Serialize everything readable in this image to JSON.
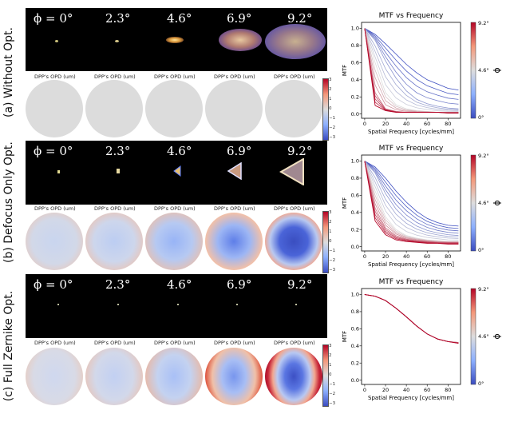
{
  "colors": {
    "cold": "#3b4cc0",
    "neutral": "#dddddd",
    "hot": "#b40426"
  },
  "phi_labels": [
    "ϕ = 0°",
    "2.3°",
    "4.6°",
    "6.9°",
    "9.2°"
  ],
  "opd_label": "DPP's OPD (um)",
  "opd_ticks": [
    "3",
    "2",
    "1",
    "0",
    "−1",
    "−2",
    "−3"
  ],
  "rows": [
    {
      "label": "(a) Without Opt."
    },
    {
      "label": "(b) Defocus Only Opt."
    },
    {
      "label": "(c) Full Zernike Opt."
    }
  ],
  "mtf_common": {
    "title": "MTF vs Frequency",
    "xlabel": "Spatial Frequency [cycles/mm]",
    "ylabel": "MTF",
    "xticks": [
      "0",
      "20",
      "40",
      "60",
      "80"
    ],
    "yticks": [
      "0.0",
      "0.2",
      "0.4",
      "0.6",
      "0.8",
      "1.0"
    ],
    "cbar_ticks": [
      "9.2°",
      "4.6°",
      "0°"
    ],
    "cbar_label": "ϕ"
  },
  "chart_data": [
    {
      "type": "line",
      "title": "MTF vs Frequency",
      "xlabel": "Spatial Frequency [cycles/mm]",
      "ylabel": "MTF",
      "xlim": [
        -3,
        92
      ],
      "ylim": [
        -0.05,
        1.07
      ],
      "x": [
        0,
        10,
        20,
        30,
        40,
        50,
        60,
        70,
        80,
        90
      ],
      "series": [
        {
          "name": "0°",
          "values": [
            1.0,
            0.93,
            0.82,
            0.7,
            0.58,
            0.48,
            0.4,
            0.35,
            0.3,
            0.28
          ]
        },
        {
          "name": "2.3°",
          "values": [
            1.0,
            0.86,
            0.62,
            0.42,
            0.27,
            0.17,
            0.12,
            0.09,
            0.07,
            0.06
          ]
        },
        {
          "name": "4.6°",
          "values": [
            1.0,
            0.6,
            0.25,
            0.11,
            0.06,
            0.04,
            0.03,
            0.02,
            0.02,
            0.02
          ]
        },
        {
          "name": "6.9°",
          "values": [
            1.0,
            0.25,
            0.06,
            0.03,
            0.02,
            0.02,
            0.02,
            0.02,
            0.02,
            0.02
          ]
        },
        {
          "name": "9.2°",
          "values": [
            1.0,
            0.1,
            0.04,
            0.02,
            0.02,
            0.02,
            0.02,
            0.02,
            0.01,
            0.01
          ]
        }
      ]
    },
    {
      "type": "line",
      "title": "MTF vs Frequency",
      "xlabel": "Spatial Frequency [cycles/mm]",
      "ylabel": "MTF",
      "xlim": [
        -3,
        92
      ],
      "ylim": [
        -0.05,
        1.07
      ],
      "x": [
        0,
        10,
        20,
        30,
        40,
        50,
        60,
        70,
        80,
        90
      ],
      "series": [
        {
          "name": "0°",
          "values": [
            1.0,
            0.93,
            0.8,
            0.65,
            0.52,
            0.41,
            0.33,
            0.28,
            0.25,
            0.24
          ]
        },
        {
          "name": "2.3°",
          "values": [
            1.0,
            0.86,
            0.62,
            0.44,
            0.32,
            0.24,
            0.19,
            0.16,
            0.14,
            0.13
          ]
        },
        {
          "name": "4.6°",
          "values": [
            1.0,
            0.65,
            0.35,
            0.2,
            0.13,
            0.1,
            0.08,
            0.07,
            0.06,
            0.06
          ]
        },
        {
          "name": "6.9°",
          "values": [
            1.0,
            0.45,
            0.22,
            0.13,
            0.09,
            0.07,
            0.06,
            0.05,
            0.05,
            0.05
          ]
        },
        {
          "name": "9.2°",
          "values": [
            1.0,
            0.3,
            0.14,
            0.08,
            0.06,
            0.05,
            0.04,
            0.04,
            0.03,
            0.03
          ]
        }
      ]
    },
    {
      "type": "line",
      "title": "MTF vs Frequency",
      "xlabel": "Spatial Frequency [cycles/mm]",
      "ylabel": "MTF",
      "xlim": [
        -3,
        92
      ],
      "ylim": [
        -0.05,
        1.07
      ],
      "x": [
        0,
        10,
        20,
        30,
        40,
        50,
        60,
        70,
        80,
        90
      ],
      "series": [
        {
          "name": "0°",
          "values": [
            1.0,
            0.98,
            0.93,
            0.84,
            0.74,
            0.63,
            0.54,
            0.48,
            0.45,
            0.44
          ]
        },
        {
          "name": "2.3°",
          "values": [
            1.0,
            0.98,
            0.93,
            0.84,
            0.74,
            0.63,
            0.54,
            0.48,
            0.45,
            0.44
          ]
        },
        {
          "name": "4.6°",
          "values": [
            1.0,
            0.98,
            0.93,
            0.84,
            0.74,
            0.63,
            0.54,
            0.48,
            0.45,
            0.44
          ]
        },
        {
          "name": "6.9°",
          "values": [
            1.0,
            0.98,
            0.93,
            0.84,
            0.74,
            0.63,
            0.54,
            0.48,
            0.45,
            0.44
          ]
        },
        {
          "name": "9.2°",
          "values": [
            1.0,
            0.98,
            0.93,
            0.84,
            0.74,
            0.63,
            0.54,
            0.48,
            0.45,
            0.43
          ]
        }
      ]
    }
  ]
}
